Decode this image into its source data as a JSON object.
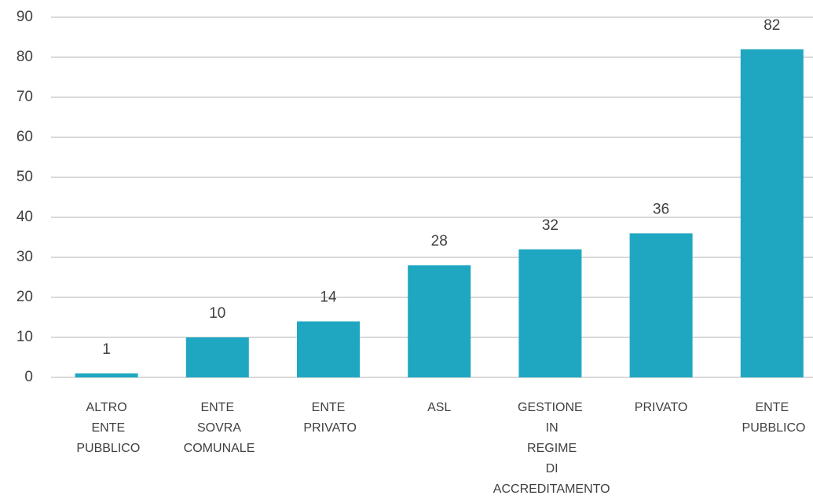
{
  "chart_data": {
    "type": "bar",
    "categories": [
      "ALTRO ENTE PUBBLICO",
      "ENTE SOVRA COMUNALE",
      "ENTE PRIVATO",
      "ASL",
      "GESTIONE IN REGIME DI ACCREDITAMENTO",
      "PRIVATO",
      "ENTE PUBBLICO"
    ],
    "values": [
      1,
      10,
      14,
      28,
      32,
      36,
      82
    ],
    "color": "#1fa7c1",
    "ylim": [
      0,
      90
    ],
    "yticks": [
      0,
      10,
      20,
      30,
      40,
      50,
      60,
      70,
      80,
      90
    ],
    "grid": true
  }
}
